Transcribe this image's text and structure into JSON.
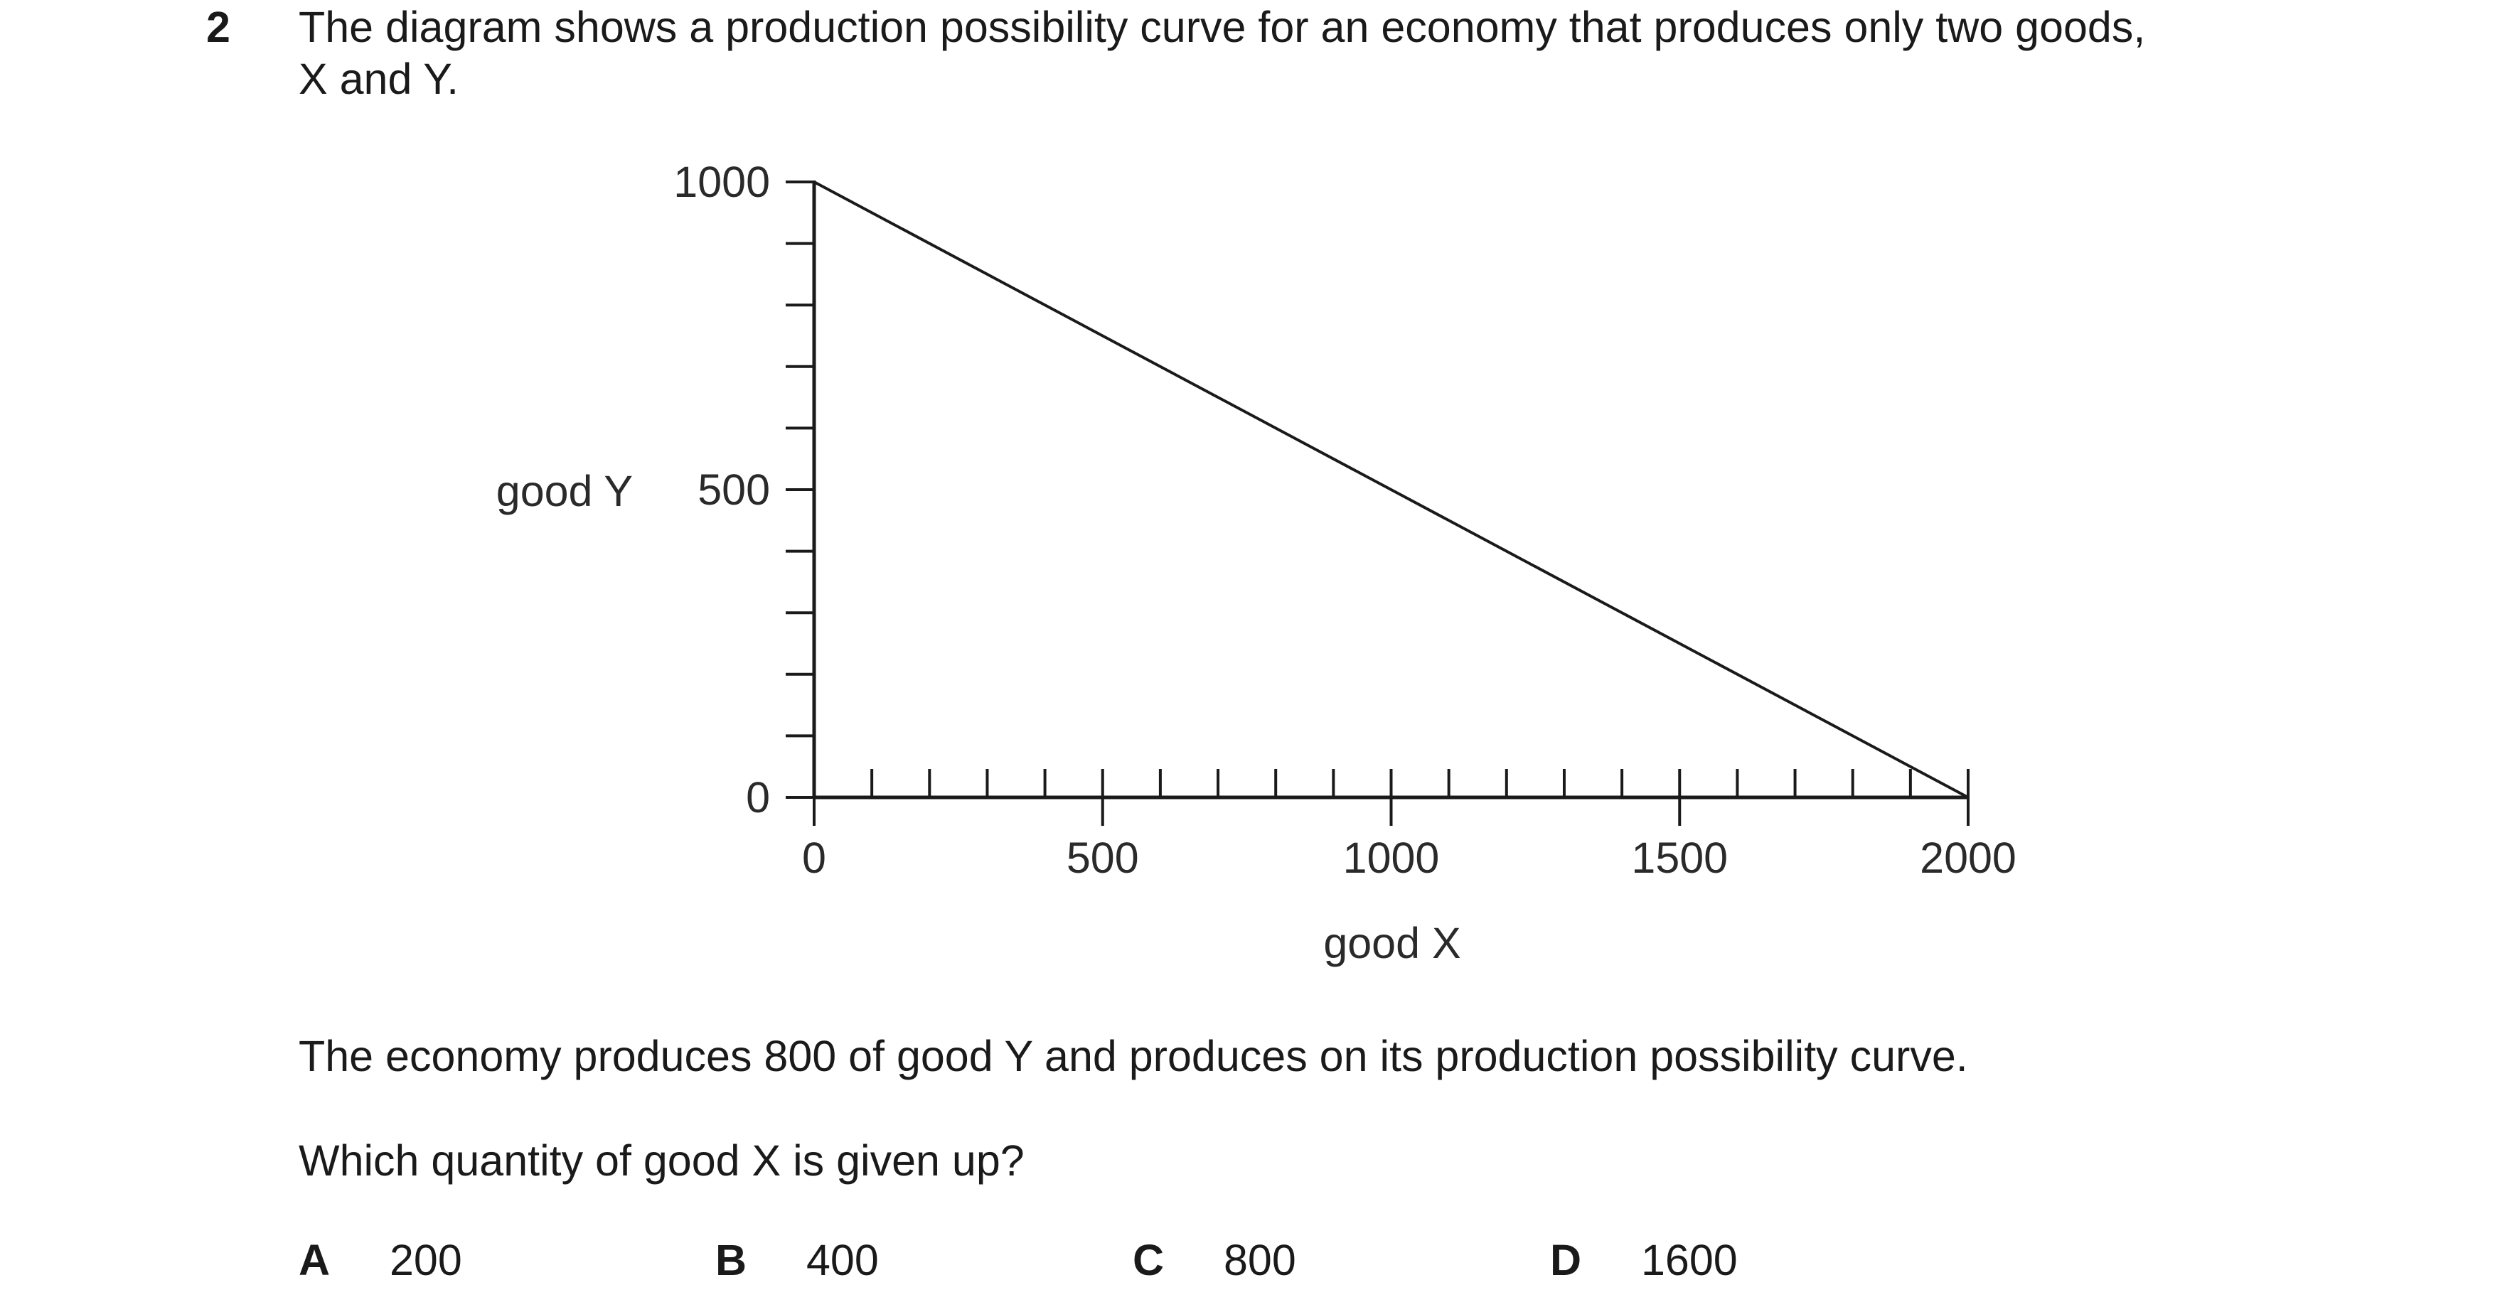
{
  "question": {
    "number": "2",
    "text_line1": "The diagram shows a production possibility curve for an economy that produces only two goods,",
    "text_line2": "X and Y.",
    "statement": "The economy produces 800 of good Y and produces on its production possibility curve.",
    "prompt": "Which quantity of good X is given up?"
  },
  "options": [
    {
      "letter": "A",
      "value": "200"
    },
    {
      "letter": "B",
      "value": "400"
    },
    {
      "letter": "C",
      "value": "800"
    },
    {
      "letter": "D",
      "value": "1600"
    }
  ],
  "chart_data": {
    "type": "line",
    "xlabel": "good X",
    "ylabel": "good Y",
    "xlim": [
      0,
      2000
    ],
    "ylim": [
      0,
      1000
    ],
    "x_tick_labels": [
      "0",
      "500",
      "1000",
      "1500",
      "2000"
    ],
    "y_tick_labels": [
      "0",
      "500",
      "1000"
    ],
    "x_minor_step": 100,
    "y_minor_step": 100,
    "grid": false,
    "series": [
      {
        "x": [
          0,
          2000
        ],
        "y": [
          1000,
          0
        ]
      }
    ]
  }
}
